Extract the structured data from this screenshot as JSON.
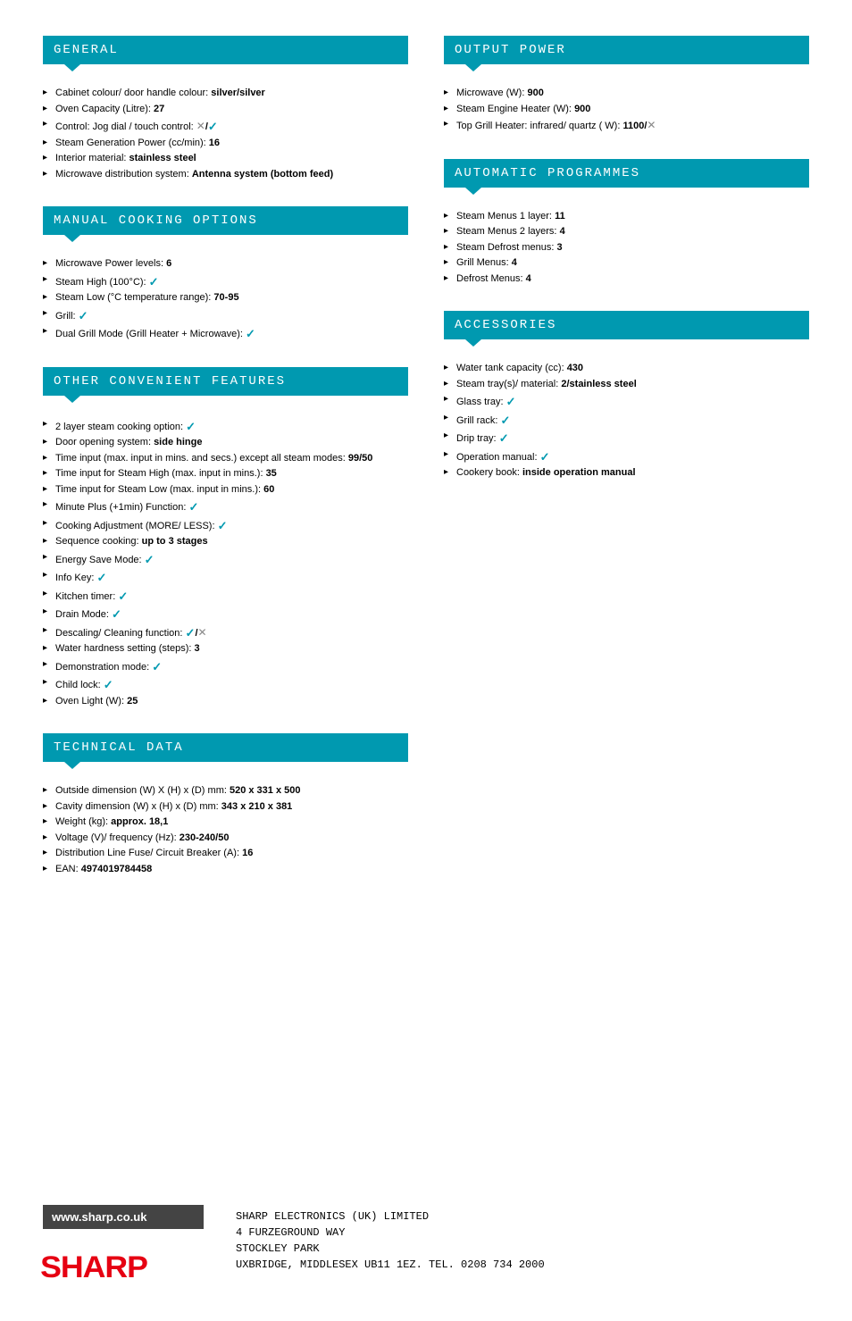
{
  "sections": {
    "general": {
      "title": "GENERAL",
      "items": [
        {
          "label": "Cabinet colour/ door handle colour: ",
          "value": "silver/silver"
        },
        {
          "label": "Oven Capacity (Litre): ",
          "value": "27"
        },
        {
          "label": "Control: Jog dial / touch control: ",
          "value": "",
          "icons": [
            "cross",
            "slash",
            "check"
          ]
        },
        {
          "label": "Steam Generation Power (cc/min): ",
          "value": "16"
        },
        {
          "label": "Interior material: ",
          "value": "stainless steel"
        },
        {
          "label": "Microwave distribution system: ",
          "value": "Antenna system (bottom feed)"
        }
      ]
    },
    "manual": {
      "title": "MANUAL COOKING OPTIONS",
      "items": [
        {
          "label": "Microwave Power levels: ",
          "value": "6"
        },
        {
          "label": "Steam High (100°C): ",
          "value": "",
          "icons": [
            "check"
          ]
        },
        {
          "label": "Steam Low (°C temperature range): ",
          "value": "70-95"
        },
        {
          "label": "Grill: ",
          "value": "",
          "icons": [
            "check"
          ]
        },
        {
          "label": "Dual Grill Mode (Grill Heater + Microwave): ",
          "value": "",
          "icons": [
            "check"
          ]
        }
      ]
    },
    "other": {
      "title": "OTHER CONVENIENT FEATURES",
      "items": [
        {
          "label": "2 layer steam cooking option: ",
          "value": "",
          "icons": [
            "check"
          ]
        },
        {
          "label": "Door opening system: ",
          "value": "side hinge"
        },
        {
          "label": "Time input (max. input in mins. and secs.) except all steam modes: ",
          "value": "99/50"
        },
        {
          "label": "Time input for Steam High (max. input in mins.): ",
          "value": "35"
        },
        {
          "label": "Time input for Steam Low (max. input in mins.): ",
          "value": "60"
        },
        {
          "label": "Minute Plus (+1min) Function: ",
          "value": "",
          "icons": [
            "check"
          ]
        },
        {
          "label": "Cooking Adjustment (MORE/ LESS): ",
          "value": "",
          "icons": [
            "check"
          ]
        },
        {
          "label": "Sequence cooking: ",
          "value": "up to 3 stages"
        },
        {
          "label": "Energy Save Mode: ",
          "value": "",
          "icons": [
            "check"
          ]
        },
        {
          "label": "Info Key: ",
          "value": "",
          "icons": [
            "check"
          ]
        },
        {
          "label": "Kitchen timer: ",
          "value": "",
          "icons": [
            "check"
          ]
        },
        {
          "label": "Drain Mode: ",
          "value": "",
          "icons": [
            "check"
          ]
        },
        {
          "label": "Descaling/ Cleaning function: ",
          "value": "",
          "icons": [
            "check",
            "slash",
            "cross"
          ]
        },
        {
          "label": "Water hardness setting (steps): ",
          "value": "3"
        },
        {
          "label": "Demonstration mode: ",
          "value": "",
          "icons": [
            "check"
          ]
        },
        {
          "label": "Child lock: ",
          "value": "",
          "icons": [
            "check"
          ]
        },
        {
          "label": "Oven Light (W): ",
          "value": "25"
        }
      ]
    },
    "technical": {
      "title": "TECHNICAL DATA",
      "items": [
        {
          "label": "Outside dimension (W) X (H) x (D) mm: ",
          "value": "520 x 331 x 500"
        },
        {
          "label": "Cavity dimension (W) x (H) x (D) mm: ",
          "value": "343 x 210 x 381"
        },
        {
          "label": "Weight (kg): ",
          "value": "approx. 18,1"
        },
        {
          "label": "Voltage (V)/ frequency (Hz): ",
          "value": "230-240/50"
        },
        {
          "label": "Distribution Line Fuse/ Circuit Breaker (A): ",
          "value": "16"
        },
        {
          "label": "EAN: ",
          "value": "4974019784458"
        }
      ]
    },
    "output": {
      "title": "OUTPUT POWER",
      "items": [
        {
          "label": "Microwave (W): ",
          "value": "900"
        },
        {
          "label": "Steam Engine Heater (W): ",
          "value": "900"
        },
        {
          "label": "Top Grill Heater: infrared/ quartz ( W): ",
          "value": "1100/",
          "icons": [
            "cross"
          ]
        }
      ]
    },
    "auto": {
      "title": "AUTOMATIC PROGRAMMES",
      "items": [
        {
          "label": "Steam Menus 1 layer: ",
          "value": "11"
        },
        {
          "label": "Steam Menus 2 layers: ",
          "value": "4"
        },
        {
          "label": "Steam Defrost menus: ",
          "value": "3"
        },
        {
          "label": "Grill Menus: ",
          "value": "4"
        },
        {
          "label": "Defrost Menus: ",
          "value": "4"
        }
      ]
    },
    "accessories": {
      "title": "ACCESSORIES",
      "items": [
        {
          "label": "Water tank capacity (cc): ",
          "value": "430"
        },
        {
          "label": "Steam tray(s)/ material: ",
          "value": "2/stainless steel"
        },
        {
          "label": "Glass tray: ",
          "value": "",
          "icons": [
            "check"
          ]
        },
        {
          "label": "Grill rack: ",
          "value": "",
          "icons": [
            "check"
          ]
        },
        {
          "label": "Drip tray: ",
          "value": "",
          "icons": [
            "check"
          ]
        },
        {
          "label": "Operation manual: ",
          "value": "",
          "icons": [
            "check"
          ]
        },
        {
          "label": "Cookery book: ",
          "value": "inside operation manual"
        }
      ]
    }
  },
  "footer": {
    "url": "www.sharp.co.uk",
    "logo": "SHARP",
    "address": "SHARP ELECTRONICS (UK) LIMITED\n4 FURZEGROUND WAY\nSTOCKLEY PARK\nUXBRIDGE, MIDDLESEX UB11 1EZ. TEL. 0208 734 2000"
  },
  "colors": {
    "header_bg": "#0099b0",
    "check": "#0099b0",
    "cross": "#888888",
    "footer_bar": "#444444",
    "logo": "#e60012"
  }
}
